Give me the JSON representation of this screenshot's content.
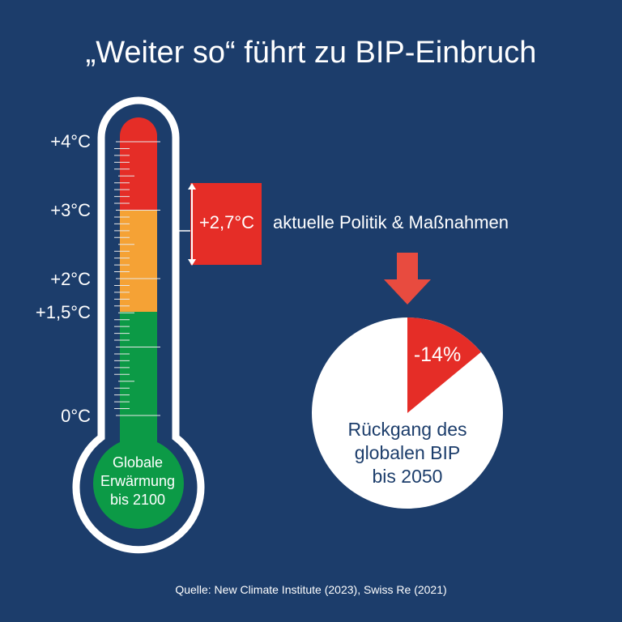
{
  "title": "„Weiter so“ führt zu BIP-Einbruch",
  "thermometer": {
    "labels": [
      "+4°C",
      "+3°C",
      "+2°C",
      "+1,5°C",
      "0°C"
    ],
    "bulb_text": [
      "Globale",
      "Erwärmung",
      "bis 2100"
    ],
    "current_value": 2.7,
    "current_label": "+2,7°C"
  },
  "policy_label": "aktuelle Politik & Maßnahmen",
  "pie": {
    "percent": 14,
    "label": "-14%",
    "caption": [
      "Rückgang des",
      "globalen BIP",
      "bis 2050"
    ]
  },
  "colors": {
    "background": "#1c3d6b",
    "red": "#e52d27",
    "orange": "#f5a235",
    "green": "#0c9a46"
  },
  "source": "Quelle: New Climate Institute (2023), Swiss Re (2021)"
}
